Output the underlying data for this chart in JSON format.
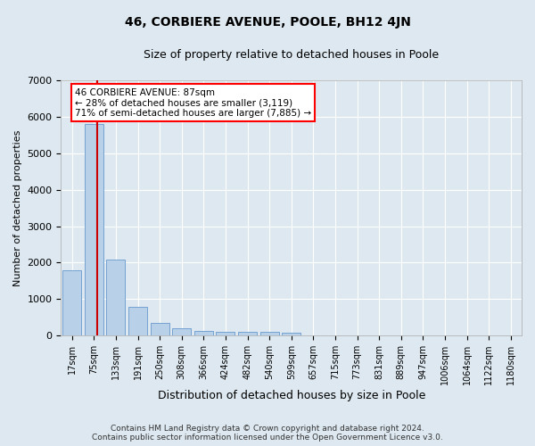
{
  "title": "46, CORBIERE AVENUE, POOLE, BH12 4JN",
  "subtitle": "Size of property relative to detached houses in Poole",
  "xlabel": "Distribution of detached houses by size in Poole",
  "ylabel": "Number of detached properties",
  "footer_line1": "Contains HM Land Registry data © Crown copyright and database right 2024.",
  "footer_line2": "Contains public sector information licensed under the Open Government Licence v3.0.",
  "bin_labels": [
    "17sqm",
    "75sqm",
    "133sqm",
    "191sqm",
    "250sqm",
    "308sqm",
    "366sqm",
    "424sqm",
    "482sqm",
    "540sqm",
    "599sqm",
    "657sqm",
    "715sqm",
    "773sqm",
    "831sqm",
    "889sqm",
    "947sqm",
    "1006sqm",
    "1064sqm",
    "1122sqm",
    "1180sqm"
  ],
  "bar_values": [
    1780,
    5800,
    2080,
    800,
    340,
    210,
    125,
    115,
    100,
    95,
    70,
    5,
    5,
    0,
    0,
    0,
    0,
    0,
    0,
    0,
    0
  ],
  "bar_color": "#b8d0e8",
  "bar_edge_color": "#6699cc",
  "red_line_x": 1.15,
  "annotation_line1": "46 CORBIERE AVENUE: 87sqm",
  "annotation_line2": "← 28% of detached houses are smaller (3,119)",
  "annotation_line3": "71% of semi-detached houses are larger (7,885) →",
  "annotation_box_facecolor": "white",
  "annotation_box_edgecolor": "red",
  "red_line_color": "#cc0000",
  "ylim": [
    0,
    7000
  ],
  "yticks": [
    0,
    1000,
    2000,
    3000,
    4000,
    5000,
    6000,
    7000
  ],
  "background_color": "#dde8f0",
  "plot_bg_color": "#dde8f0",
  "grid_color": "white",
  "title_fontsize": 10,
  "subtitle_fontsize": 9,
  "axis_label_fontsize": 8,
  "tick_fontsize": 7,
  "footer_fontsize": 6.5
}
